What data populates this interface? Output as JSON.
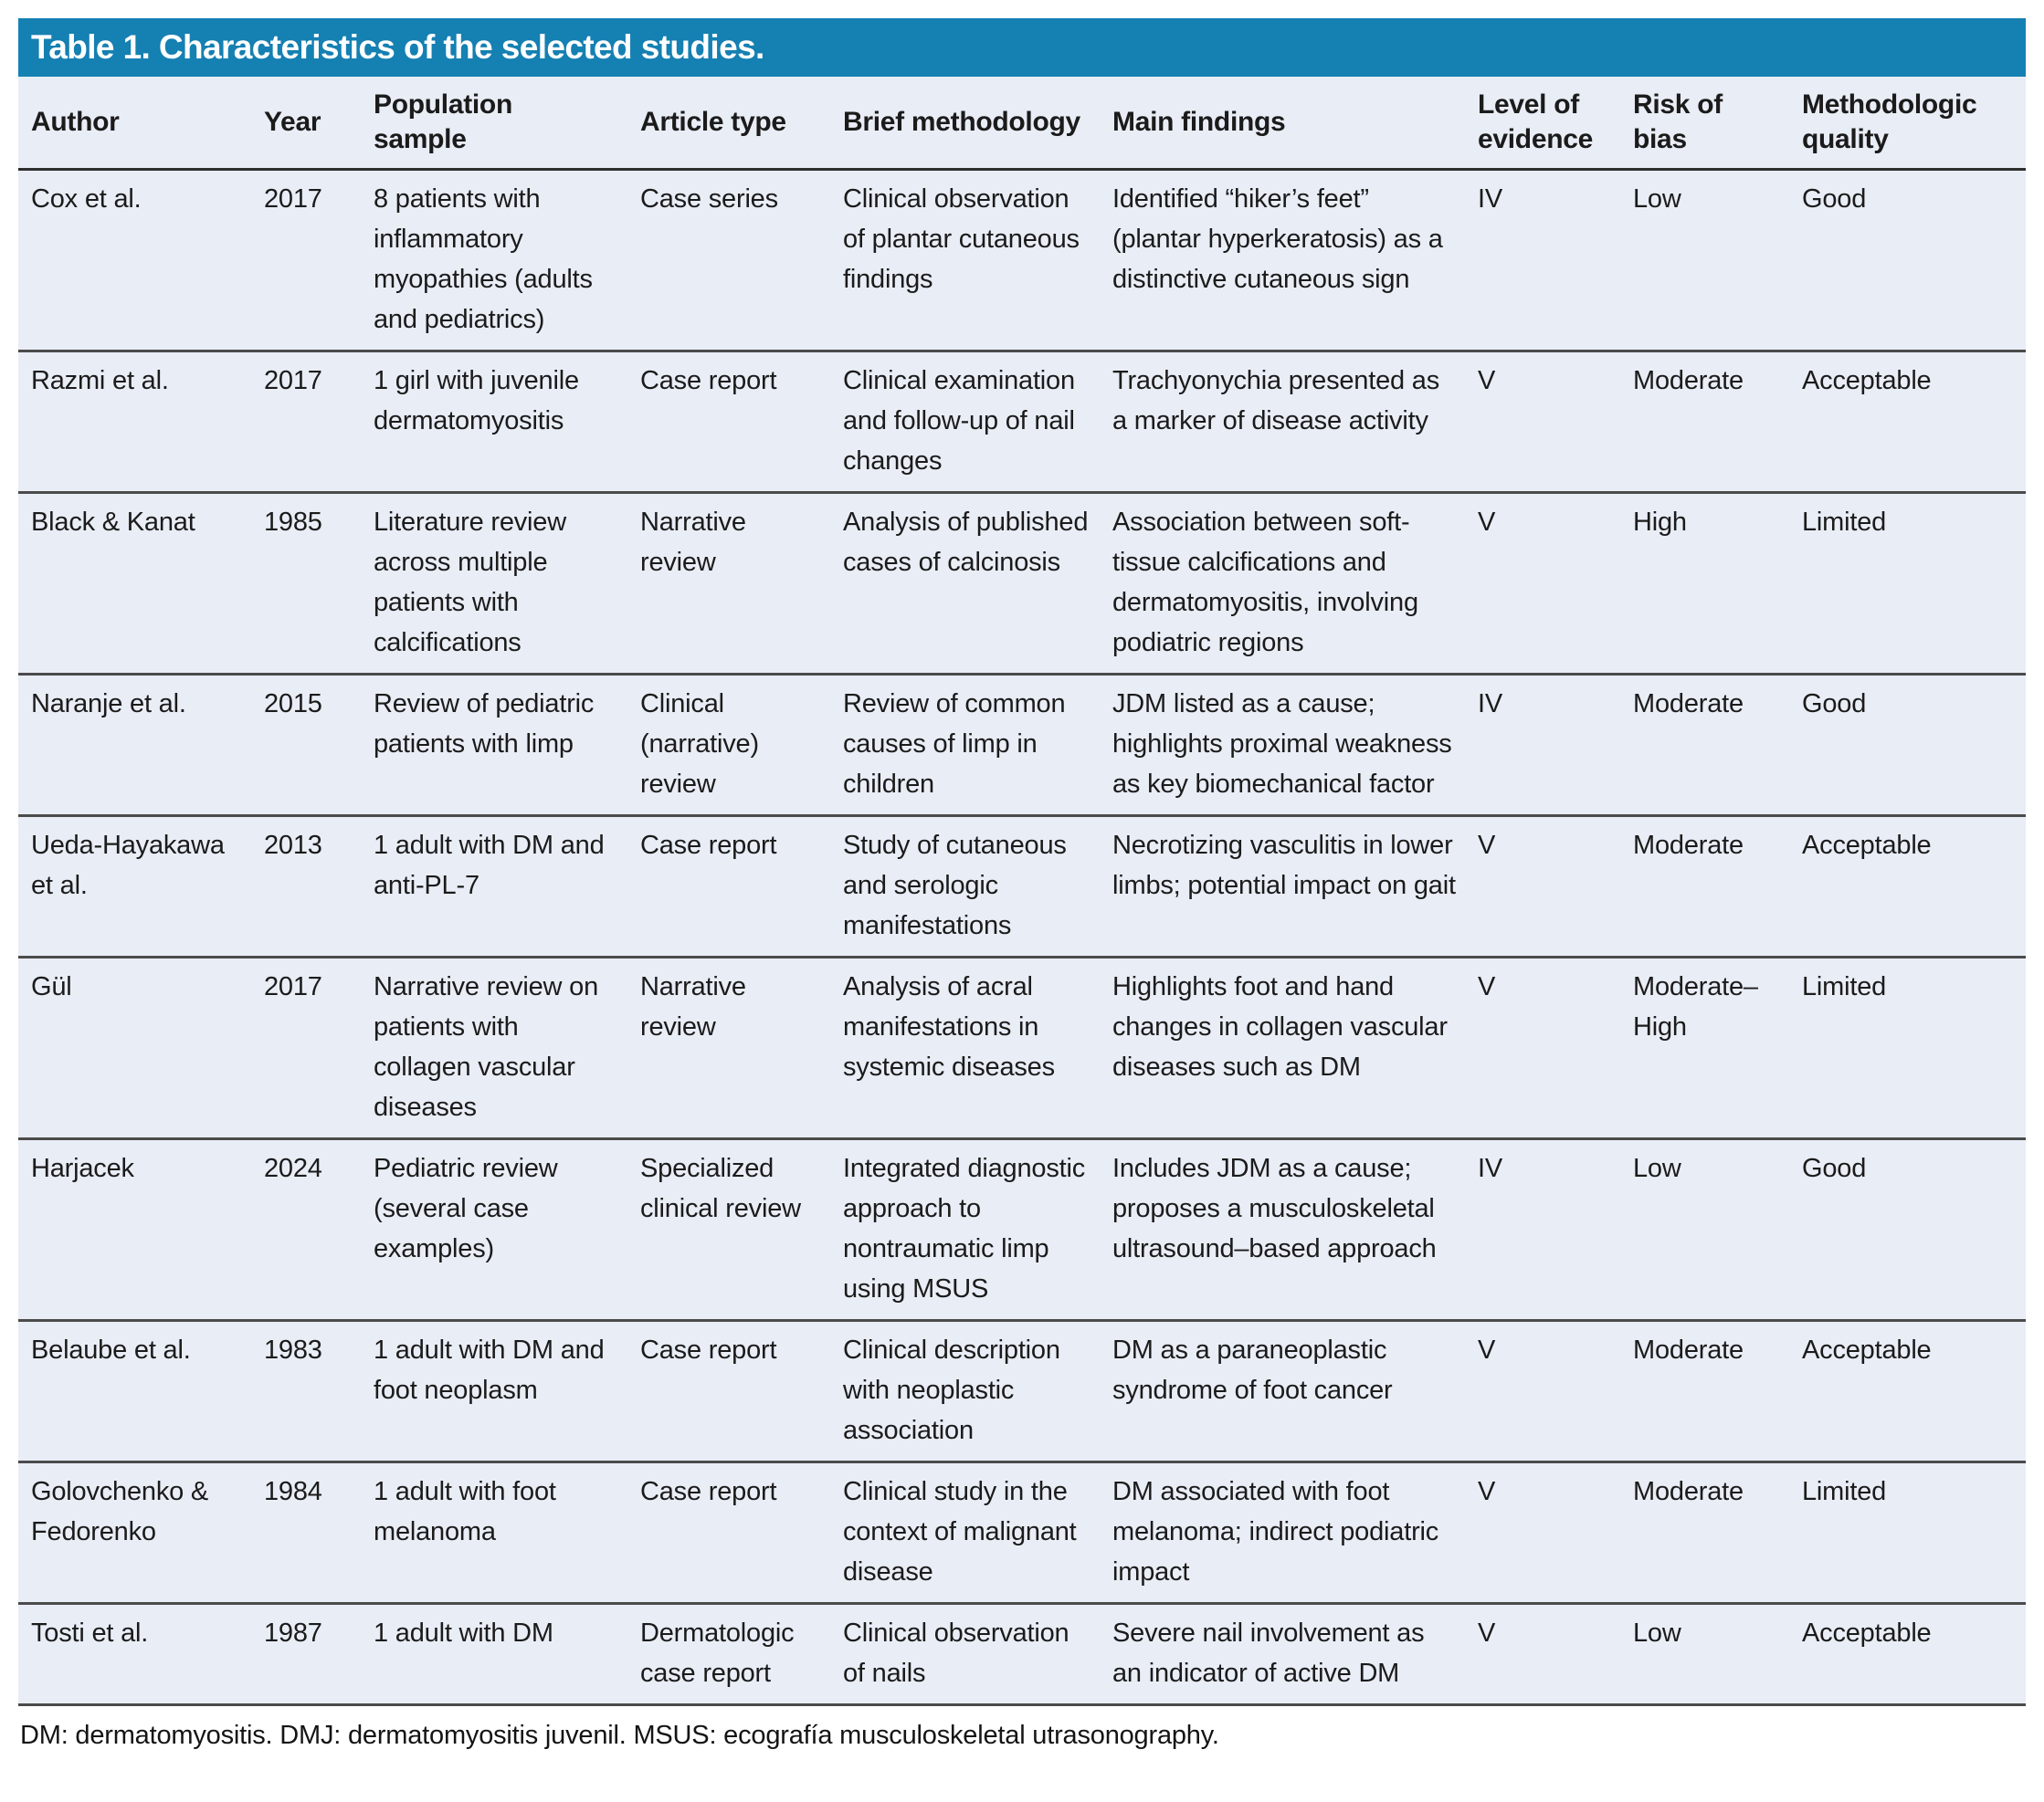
{
  "title": "Table 1. Characteristics of the selected studies.",
  "columns": [
    {
      "key": "author",
      "label": "Author"
    },
    {
      "key": "year",
      "label": "Year"
    },
    {
      "key": "population",
      "label": "Population\nsample"
    },
    {
      "key": "article_type",
      "label": "Article type"
    },
    {
      "key": "methodology",
      "label": "Brief methodology"
    },
    {
      "key": "findings",
      "label": "Main findings"
    },
    {
      "key": "level",
      "label": "Level of\nevidence"
    },
    {
      "key": "risk",
      "label": "Risk of\nbias"
    },
    {
      "key": "quality",
      "label": "Methodologic\nquality"
    }
  ],
  "rows": [
    {
      "author": "Cox et al.",
      "year": "2017",
      "population": "8 patients with inflammatory myopathies (adults and pediatrics)",
      "article_type": "Case series",
      "methodology": "Clinical observation of plantar cutaneous findings",
      "findings": "Identified “hiker’s feet” (plantar hyperkeratosis) as a distinctive cutaneous sign",
      "level": "IV",
      "risk": "Low",
      "quality": "Good"
    },
    {
      "author": "Razmi et al.",
      "year": "2017",
      "population": "1 girl with juvenile dermatomyositis",
      "article_type": "Case report",
      "methodology": "Clinical examination and follow-up of nail changes",
      "findings": "Trachyonychia presented as a marker of disease activity",
      "level": "V",
      "risk": "Moderate",
      "quality": "Acceptable"
    },
    {
      "author": "Black & Kanat",
      "year": "1985",
      "population": "Literature review across multiple patients with calcifications",
      "article_type": "Narrative review",
      "methodology": "Analysis of published cases of calcinosis",
      "findings": "Association between soft-tissue calcifications and dermatomyositis, involving podiatric regions",
      "level": "V",
      "risk": "High",
      "quality": "Limited"
    },
    {
      "author": "Naranje et al.",
      "year": "2015",
      "population": "Review of pediatric patients with limp",
      "article_type": "Clinical (narrative) review",
      "methodology": "Review of common causes of limp in children",
      "findings": "JDM listed as a cause; highlights proximal weakness as key biomechanical factor",
      "level": "IV",
      "risk": "Moderate",
      "quality": "Good"
    },
    {
      "author": "Ueda-Hayakawa et al.",
      "year": "2013",
      "population": "1 adult with DM and anti-PL-7",
      "article_type": "Case report",
      "methodology": "Study of cutaneous and serologic manifestations",
      "findings": "Necrotizing vasculitis in lower limbs; potential impact on gait",
      "level": "V",
      "risk": "Moderate",
      "quality": "Acceptable"
    },
    {
      "author": "Gül",
      "year": "2017",
      "population": "Narrative review on patients with collagen vascular diseases",
      "article_type": "Narrative review",
      "methodology": "Analysis of acral manifestations in systemic diseases",
      "findings": "Highlights foot and hand changes in collagen vascular diseases such as DM",
      "level": "V",
      "risk": "Moderate–High",
      "quality": "Limited"
    },
    {
      "author": "Harjacek",
      "year": "2024",
      "population": "Pediatric review (several case examples)",
      "article_type": "Specialized clinical review",
      "methodology": "Integrated diagnostic approach to nontraumatic limp using MSUS",
      "findings": "Includes JDM as a cause; proposes a musculoskeletal ultrasound–based approach",
      "level": "IV",
      "risk": "Low",
      "quality": "Good"
    },
    {
      "author": "Belaube et al.",
      "year": "1983",
      "population": "1 adult with DM and foot neoplasm",
      "article_type": "Case report",
      "methodology": "Clinical description with neoplastic association",
      "findings": "DM as a paraneoplastic syndrome of foot cancer",
      "level": "V",
      "risk": "Moderate",
      "quality": "Acceptable"
    },
    {
      "author": "Golovchenko & Fedorenko",
      "year": "1984",
      "population": "1 adult with foot melanoma",
      "article_type": "Case report",
      "methodology": "Clinical study in the context of malignant disease",
      "findings": "DM associated with foot melanoma; indirect podiatric impact",
      "level": "V",
      "risk": "Moderate",
      "quality": "Limited"
    },
    {
      "author": "Tosti et al.",
      "year": "1987",
      "population": "1 adult with DM",
      "article_type": "Dermatologic case report",
      "methodology": "Clinical observation of nails",
      "findings": "Severe nail involvement as an indicator of active DM",
      "level": "V",
      "risk": "Low",
      "quality": "Acceptable"
    }
  ],
  "footnote": "DM: dermatomyositis. DMJ: dermatomyositis juvenil. MSUS: ecografía musculoskeletal utrasonography.",
  "colors": {
    "title_bar": "#1580b2",
    "title_text": "#ffffff",
    "table_bg": "#e9edf6",
    "row_border": "#4b4b4b",
    "header_border": "#2e2e2e",
    "text": "#1b1b1b",
    "page_bg": "#ffffff"
  }
}
